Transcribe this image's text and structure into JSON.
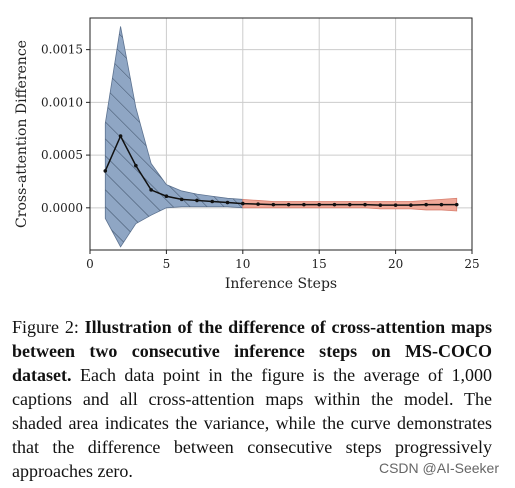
{
  "chart_data": {
    "type": "line",
    "xlabel": "Inference Steps",
    "ylabel": "Cross-attention Difference",
    "xlim": [
      0,
      25
    ],
    "ylim": [
      -0.0004,
      0.0018
    ],
    "x_ticks": [
      "0",
      "5",
      "10",
      "15",
      "20",
      "25"
    ],
    "y_ticks": [
      "0.0000",
      "0.0005",
      "0.0010",
      "0.0015"
    ],
    "grid": true,
    "x": [
      1,
      2,
      3,
      4,
      5,
      6,
      7,
      8,
      9,
      10,
      11,
      12,
      13,
      14,
      15,
      16,
      17,
      18,
      19,
      20,
      21,
      22,
      23,
      24
    ],
    "mean": [
      0.00035,
      0.00068,
      0.0004,
      0.00017,
      0.00011,
      8e-05,
      7e-05,
      6e-05,
      5e-05,
      4e-05,
      3.5e-05,
      3e-05,
      3e-05,
      3e-05,
      3e-05,
      3e-05,
      3e-05,
      3e-05,
      2.5e-05,
      2.5e-05,
      2.5e-05,
      3e-05,
      3e-05,
      3e-05
    ],
    "upper": [
      0.0008,
      0.00172,
      0.00095,
      0.00042,
      0.00022,
      0.00016,
      0.00013,
      0.00011,
      9e-05,
      8e-05,
      7e-05,
      6e-05,
      6e-05,
      6e-05,
      6e-05,
      6e-05,
      6e-05,
      6e-05,
      6e-05,
      6e-05,
      6e-05,
      7e-05,
      8e-05,
      9e-05
    ],
    "lower": [
      -0.0001,
      -0.00037,
      -0.00015,
      -7e-05,
      0.0,
      1e-05,
      1e-05,
      1e-05,
      1e-05,
      0.0,
      0.0,
      0.0,
      0.0,
      0.0,
      0.0,
      0.0,
      0.0,
      0.0,
      -1e-05,
      -1e-05,
      -1e-05,
      -2e-05,
      -2e-05,
      -3e-05
    ],
    "band_split_x": 10,
    "colors": {
      "band_early": "#8fa6c4",
      "band_late": "#f0a898",
      "line": "#111111",
      "grid": "#cccccc"
    }
  },
  "caption": {
    "label": "Figure 2: ",
    "bold": "Illustration of the difference of cross-attention maps between two consecutive inference steps on MS-COCO dataset.",
    "text": " Each data point in the figure is the average of 1,000 captions and all cross-attention maps within the model. The shaded area indicates the variance, while the curve demonstrates that the difference between consecutive steps progressively approaches zero."
  },
  "watermark": "CSDN @AI-Seeker"
}
